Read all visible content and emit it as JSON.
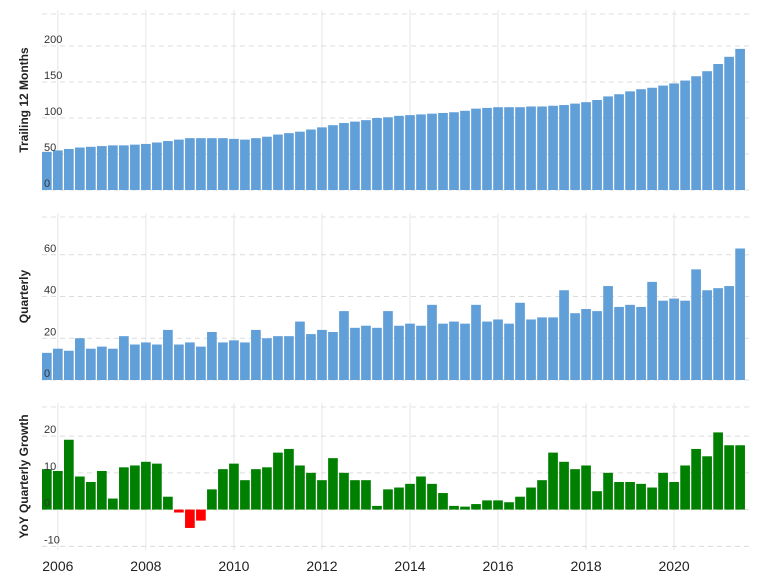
{
  "chart_data": [
    {
      "type": "bar",
      "ylabel": "Trailing 12 Months",
      "color": "#619fd9",
      "x": [
        2005.75,
        2006,
        2006.25,
        2006.5,
        2006.75,
        2007,
        2007.25,
        2007.5,
        2007.75,
        2008,
        2008.25,
        2008.5,
        2008.75,
        2009,
        2009.25,
        2009.5,
        2009.75,
        2010,
        2010.25,
        2010.5,
        2010.75,
        2011,
        2011.25,
        2011.5,
        2011.75,
        2012,
        2012.25,
        2012.5,
        2012.75,
        2013,
        2013.25,
        2013.5,
        2013.75,
        2014,
        2014.25,
        2014.5,
        2014.75,
        2015,
        2015.25,
        2015.5,
        2015.75,
        2016,
        2016.25,
        2016.5,
        2016.75,
        2017,
        2017.25,
        2017.5,
        2017.75,
        2018,
        2018.25,
        2018.5,
        2018.75,
        2019,
        2019.25,
        2019.5,
        2019.75,
        2020,
        2020.25,
        2020.5,
        2020.75,
        2021,
        2021.25,
        2021.5
      ],
      "values": [
        53,
        55,
        57,
        59,
        60,
        61,
        62,
        62,
        63,
        64,
        66,
        68,
        70,
        72,
        72,
        72,
        72,
        71,
        70,
        72,
        74,
        77,
        79,
        81,
        84,
        87,
        90,
        93,
        95,
        97,
        100,
        101,
        103,
        104,
        105,
        106,
        107,
        108,
        110,
        113,
        114,
        115,
        115,
        115,
        116,
        116,
        117,
        118,
        120,
        122,
        125,
        130,
        133,
        137,
        140,
        142,
        145,
        148,
        152,
        158,
        165,
        175,
        185,
        196
      ],
      "xlim": [
        2005.64,
        2021.77
      ],
      "ylim": [
        0,
        250
      ],
      "yticks": [
        0,
        50,
        100,
        150,
        200
      ],
      "grid": true
    },
    {
      "type": "bar",
      "ylabel": "Quarterly",
      "color": "#619fd9",
      "x": [
        2005.75,
        2006,
        2006.25,
        2006.5,
        2006.75,
        2007,
        2007.25,
        2007.5,
        2007.75,
        2008,
        2008.25,
        2008.5,
        2008.75,
        2009,
        2009.25,
        2009.5,
        2009.75,
        2010,
        2010.25,
        2010.5,
        2010.75,
        2011,
        2011.25,
        2011.5,
        2011.75,
        2012,
        2012.25,
        2012.5,
        2012.75,
        2013,
        2013.25,
        2013.5,
        2013.75,
        2014,
        2014.25,
        2014.5,
        2014.75,
        2015,
        2015.25,
        2015.5,
        2015.75,
        2016,
        2016.25,
        2016.5,
        2016.75,
        2017,
        2017.25,
        2017.5,
        2017.75,
        2018,
        2018.25,
        2018.5,
        2018.75,
        2019,
        2019.25,
        2019.5,
        2019.75,
        2020,
        2020.25,
        2020.5,
        2020.75,
        2021,
        2021.25,
        2021.5
      ],
      "values": [
        13,
        15,
        14,
        20,
        15,
        16,
        15,
        21,
        17,
        18,
        17,
        24,
        17,
        18,
        16,
        23,
        18,
        19,
        18,
        24,
        20,
        21,
        21,
        28,
        22,
        24,
        23,
        33,
        25,
        26,
        25,
        33,
        26,
        27,
        26,
        36,
        27,
        28,
        27,
        36,
        28,
        29,
        27,
        37,
        29,
        30,
        30,
        43,
        32,
        34,
        33,
        45,
        35,
        36,
        35,
        47,
        38,
        39,
        38,
        53,
        43,
        44,
        45,
        63
      ],
      "xlim": [
        2005.64,
        2021.77
      ],
      "ylim": [
        0,
        80
      ],
      "yticks": [
        0,
        20,
        40,
        60
      ],
      "grid": true
    },
    {
      "type": "bar",
      "ylabel": "YoY Quarterly Growth",
      "color": "#008000",
      "negative_color": "#ff0000",
      "x": [
        2005.75,
        2006,
        2006.25,
        2006.5,
        2006.75,
        2007,
        2007.25,
        2007.5,
        2007.75,
        2008,
        2008.25,
        2008.5,
        2008.75,
        2009,
        2009.25,
        2009.5,
        2009.75,
        2010,
        2010.25,
        2010.5,
        2010.75,
        2011,
        2011.25,
        2011.5,
        2011.75,
        2012,
        2012.25,
        2012.5,
        2012.75,
        2013,
        2013.25,
        2013.5,
        2013.75,
        2014,
        2014.25,
        2014.5,
        2014.75,
        2015,
        2015.25,
        2015.5,
        2015.75,
        2016,
        2016.25,
        2016.5,
        2016.75,
        2017,
        2017.25,
        2017.5,
        2017.75,
        2018,
        2018.25,
        2018.5,
        2018.75,
        2019,
        2019.25,
        2019.5,
        2019.75,
        2020,
        2020.25,
        2020.5,
        2020.75,
        2021,
        2021.25,
        2021.5
      ],
      "values": [
        11,
        10.5,
        19,
        9,
        7.5,
        10.5,
        3,
        11.5,
        12,
        13,
        12.5,
        3.5,
        -0.8,
        -5,
        -3,
        5.5,
        11,
        12.5,
        8,
        11,
        11.5,
        15.5,
        16.5,
        12,
        10,
        8,
        14,
        10,
        8,
        8,
        1,
        5.5,
        6,
        7,
        9,
        7,
        4.5,
        1,
        0.8,
        1.5,
        2.5,
        2.5,
        2,
        3.5,
        6,
        8,
        15.5,
        13,
        11,
        12,
        5,
        10,
        7.5,
        7.5,
        7,
        6,
        10,
        7.5,
        12,
        16.5,
        14.5,
        21,
        17.5,
        17.5
      ],
      "xlim": [
        2005.64,
        2021.77
      ],
      "ylim": [
        -11,
        29
      ],
      "yticks": [
        -10,
        0,
        10,
        20
      ],
      "xticks": [
        2006,
        2008,
        2010,
        2012,
        2014,
        2016,
        2018,
        2020
      ],
      "grid": true
    }
  ]
}
